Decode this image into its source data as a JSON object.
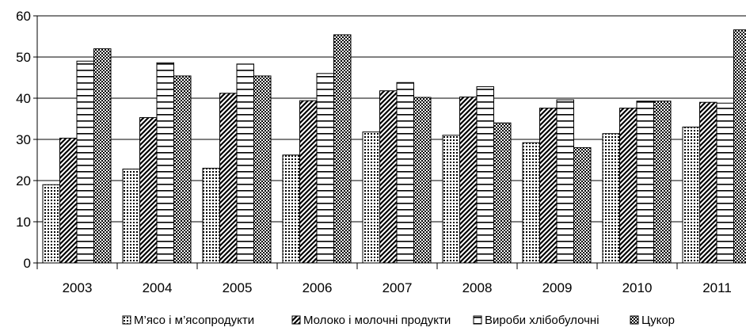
{
  "chart_data": {
    "type": "bar",
    "title": "",
    "xlabel": "",
    "ylabel": "",
    "categories": [
      "2003",
      "2004",
      "2005",
      "2006",
      "2007",
      "2008",
      "2009",
      "2010",
      "2011"
    ],
    "ylim": [
      0,
      60
    ],
    "yticks": [
      0,
      10,
      20,
      30,
      40,
      50,
      60
    ],
    "grid": true,
    "legend_position": "bottom",
    "series": [
      {
        "name": "М’ясо і м’ясопродукти",
        "pattern": "dots",
        "values": [
          19.0,
          22.8,
          23.0,
          26.2,
          31.8,
          31.0,
          29.2,
          31.4,
          33.0
        ]
      },
      {
        "name": "Молоко і молочні продукти",
        "pattern": "diagonal",
        "values": [
          30.3,
          35.3,
          41.2,
          39.4,
          41.8,
          40.3,
          37.6,
          37.6,
          39.0
        ]
      },
      {
        "name": "Вироби хлібобулочні",
        "pattern": "horizontal",
        "values": [
          49.0,
          48.6,
          48.3,
          46.0,
          43.8,
          42.8,
          39.6,
          39.3,
          38.8
        ]
      },
      {
        "name": "Цукор",
        "pattern": "checker",
        "values": [
          52.0,
          45.4,
          45.4,
          55.4,
          40.2,
          34.0,
          28.0,
          39.3,
          56.6
        ]
      }
    ]
  }
}
